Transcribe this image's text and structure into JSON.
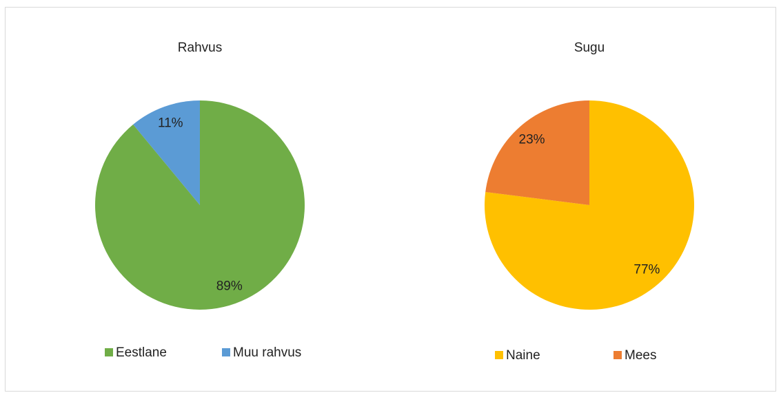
{
  "chart_data": [
    {
      "type": "pie",
      "title": "Rahvus",
      "categories": [
        "Eestlane",
        "Muu rahvus"
      ],
      "values": [
        89,
        11
      ],
      "value_labels": [
        "89%",
        "11%"
      ],
      "colors": [
        "#70ad47",
        "#5b9bd5"
      ]
    },
    {
      "type": "pie",
      "title": "Sugu",
      "categories": [
        "Naine",
        "Mees"
      ],
      "values": [
        77,
        23
      ],
      "value_labels": [
        "77%",
        "23%"
      ],
      "colors": [
        "#ffc000",
        "#ed7d31"
      ]
    }
  ]
}
